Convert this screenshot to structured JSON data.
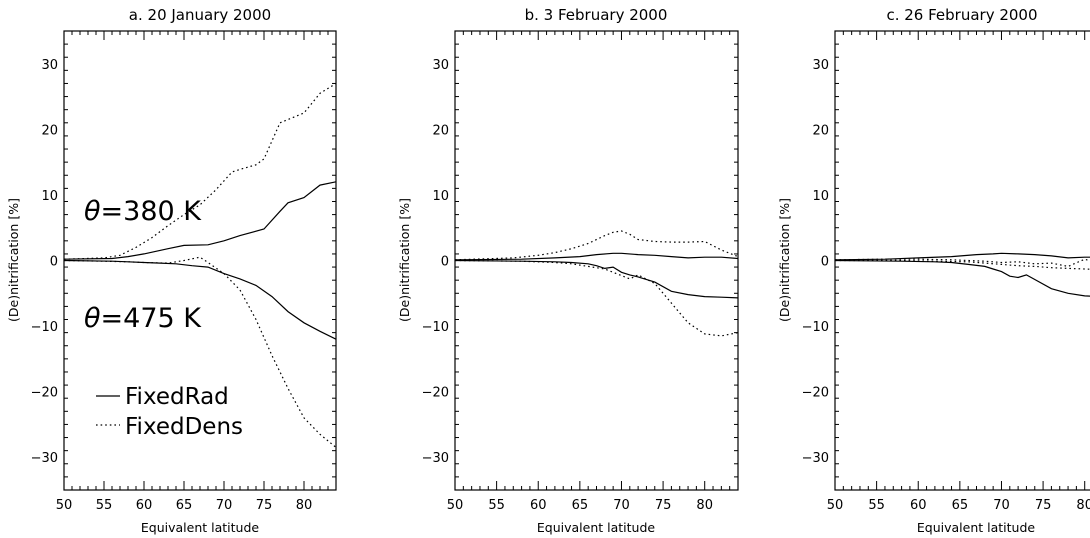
{
  "chart_data": [
    {
      "type": "line",
      "title": "a. 20 January 2000",
      "xlabel": "Equivalent latitude",
      "ylabel": "(De)nitrification [%]",
      "xlim": [
        50,
        84
      ],
      "ylim": [
        -35,
        35
      ],
      "xticks": [
        50,
        55,
        60,
        65,
        70,
        75,
        80
      ],
      "yticks": [
        -30,
        -20,
        -10,
        0,
        10,
        20,
        30
      ],
      "annotations": [
        "θ=380 K",
        "θ=475 K"
      ],
      "legend": [
        {
          "label": "FixedRad",
          "style": "solid"
        },
        {
          "label": "FixedDens",
          "style": "dotted"
        }
      ],
      "series": [
        {
          "style": "solid",
          "x": [
            50,
            56,
            58,
            60,
            63,
            65,
            68,
            70,
            72,
            75,
            77,
            78,
            80,
            82,
            84
          ],
          "y": [
            0.2,
            0.3,
            0.6,
            1.0,
            1.8,
            2.3,
            2.4,
            3.0,
            3.8,
            4.8,
            7.5,
            8.8,
            9.6,
            11.5,
            12.0
          ]
        },
        {
          "style": "dotted",
          "x": [
            50,
            55,
            57,
            59,
            61,
            63,
            65,
            67,
            69,
            71,
            72,
            74,
            75,
            77,
            78,
            80,
            82,
            84
          ],
          "y": [
            0.2,
            0.4,
            0.8,
            2.0,
            3.5,
            5.3,
            7.0,
            8.5,
            10.8,
            13.5,
            13.9,
            14.6,
            15.5,
            21.0,
            21.5,
            22.5,
            25.5,
            27.0
          ]
        },
        {
          "style": "solid",
          "x": [
            50,
            56,
            58,
            60,
            62,
            64,
            66,
            68,
            70,
            72,
            74,
            76,
            78,
            80,
            82,
            84
          ],
          "y": [
            0,
            -0.1,
            -0.2,
            -0.3,
            -0.4,
            -0.5,
            -0.8,
            -1.0,
            -2.0,
            -2.8,
            -3.8,
            -5.5,
            -7.8,
            -9.5,
            -10.8,
            -12.0
          ]
        },
        {
          "style": "dotted",
          "x": [
            50,
            55,
            58,
            60,
            63,
            65,
            67,
            68,
            70,
            72,
            74,
            76,
            78,
            80,
            82,
            84
          ],
          "y": [
            0,
            -0.1,
            -0.2,
            -0.3,
            -0.4,
            0.0,
            0.5,
            -0.3,
            -2.0,
            -4.5,
            -9.0,
            -14.5,
            -19.5,
            -24.0,
            -26.5,
            -28.5
          ]
        }
      ]
    },
    {
      "type": "line",
      "title": "b. 3 February 2000",
      "xlabel": "Equivalent latitude",
      "ylabel": "(De)nitrification [%]",
      "xlim": [
        50,
        84
      ],
      "ylim": [
        -35,
        35
      ],
      "xticks": [
        50,
        55,
        60,
        65,
        70,
        75,
        80
      ],
      "yticks": [
        -30,
        -20,
        -10,
        0,
        10,
        20,
        30
      ],
      "series": [
        {
          "style": "solid",
          "x": [
            50,
            58,
            62,
            65,
            67,
            69,
            70,
            72,
            74,
            76,
            78,
            80,
            82,
            84
          ],
          "y": [
            0.1,
            0.2,
            0.4,
            0.6,
            0.9,
            1.1,
            1.1,
            0.9,
            0.8,
            0.6,
            0.4,
            0.5,
            0.5,
            0.3
          ]
        },
        {
          "style": "dotted",
          "x": [
            50,
            57,
            60,
            62,
            64,
            66,
            68,
            69,
            70,
            71,
            72,
            74,
            76,
            78,
            80,
            82,
            84
          ],
          "y": [
            0.1,
            0.4,
            0.8,
            1.2,
            1.8,
            2.6,
            3.8,
            4.3,
            4.5,
            4.0,
            3.2,
            2.9,
            2.8,
            2.8,
            2.9,
            1.6,
            0.6
          ]
        },
        {
          "style": "solid",
          "x": [
            50,
            58,
            62,
            64,
            66,
            67,
            68,
            69,
            70,
            71,
            72,
            74,
            76,
            78,
            80,
            82,
            84
          ],
          "y": [
            0,
            -0.1,
            -0.2,
            -0.3,
            -0.5,
            -0.8,
            -1.2,
            -1.0,
            -1.8,
            -2.2,
            -2.5,
            -3.3,
            -4.7,
            -5.2,
            -5.5,
            -5.6,
            -5.7
          ]
        },
        {
          "style": "dotted",
          "x": [
            50,
            58,
            62,
            64,
            66,
            68,
            69,
            70,
            71,
            72,
            74,
            76,
            78,
            80,
            82,
            84
          ],
          "y": [
            0,
            -0.1,
            -0.3,
            -0.5,
            -0.9,
            -1.3,
            -1.8,
            -2.3,
            -2.8,
            -2.2,
            -3.5,
            -6.5,
            -9.5,
            -11.2,
            -11.5,
            -11.0
          ]
        }
      ]
    },
    {
      "type": "line",
      "title": "c. 26 February 2000",
      "xlabel": "Equivalent latitude",
      "ylabel": "(De)nitrification [%]",
      "xlim": [
        50,
        84
      ],
      "ylim": [
        -35,
        35
      ],
      "xticks": [
        50,
        55,
        60,
        65,
        70,
        75,
        80
      ],
      "yticks": [
        -30,
        -20,
        -10,
        0,
        10,
        20,
        30
      ],
      "series": [
        {
          "style": "solid",
          "x": [
            50,
            56,
            60,
            64,
            67,
            69,
            70,
            72,
            74,
            76,
            78,
            80,
            82,
            84
          ],
          "y": [
            0.1,
            0.2,
            0.4,
            0.6,
            0.9,
            1.0,
            1.1,
            1.0,
            0.9,
            0.7,
            0.4,
            0.5,
            0.5,
            0.4
          ]
        },
        {
          "style": "dotted",
          "x": [
            50,
            56,
            60,
            64,
            66,
            68,
            70,
            72,
            74,
            76,
            78,
            80,
            82,
            84
          ],
          "y": [
            0.1,
            0.2,
            0.2,
            0.1,
            0.0,
            -0.1,
            -0.3,
            -0.2,
            -0.5,
            -0.4,
            -0.9,
            0.2,
            -0.6,
            -0.9
          ]
        },
        {
          "style": "solid",
          "x": [
            50,
            58,
            62,
            64,
            66,
            68,
            69,
            70,
            71,
            72,
            73,
            74,
            76,
            78,
            80,
            82,
            84
          ],
          "y": [
            0,
            -0.1,
            -0.2,
            -0.3,
            -0.6,
            -0.9,
            -1.3,
            -1.7,
            -2.4,
            -2.6,
            -2.2,
            -2.9,
            -4.3,
            -5.0,
            -5.4,
            -5.5,
            -5.5
          ]
        },
        {
          "style": "dotted",
          "x": [
            50,
            58,
            62,
            66,
            68,
            70,
            72,
            74,
            76,
            78,
            80,
            82,
            84
          ],
          "y": [
            0,
            0.0,
            -0.1,
            -0.2,
            -0.4,
            -0.6,
            -0.8,
            -0.9,
            -1.1,
            -1.2,
            -1.3,
            -1.4,
            -1.5
          ]
        }
      ]
    }
  ]
}
